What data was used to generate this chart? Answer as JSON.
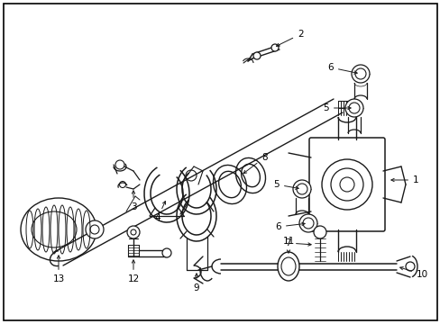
{
  "background_color": "#ffffff",
  "fig_width": 4.89,
  "fig_height": 3.6,
  "dpi": 100,
  "lc": "#1a1a1a",
  "lw": 0.9
}
